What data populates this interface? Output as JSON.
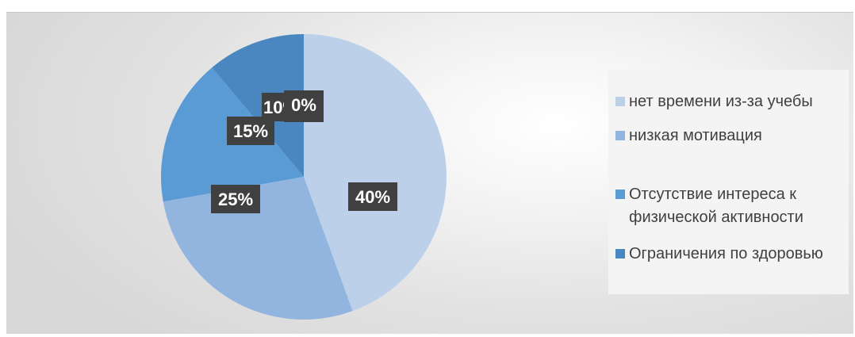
{
  "chart_data": {
    "type": "pie",
    "categories": [
      "нет времени из-за учебы",
      "низкая мотивация",
      "Отсутствие интереса к физической активности",
      "Ограничения по здоровью"
    ],
    "values": [
      40,
      25,
      15,
      10
    ],
    "data_labels": [
      "40%",
      "25%",
      "15%",
      "10%"
    ],
    "extra_label": "0%",
    "colors": [
      "#bdd0ea",
      "#91b5df",
      "#5b9bd5",
      "#4a86bf"
    ],
    "legend_position": "right",
    "title": ""
  }
}
